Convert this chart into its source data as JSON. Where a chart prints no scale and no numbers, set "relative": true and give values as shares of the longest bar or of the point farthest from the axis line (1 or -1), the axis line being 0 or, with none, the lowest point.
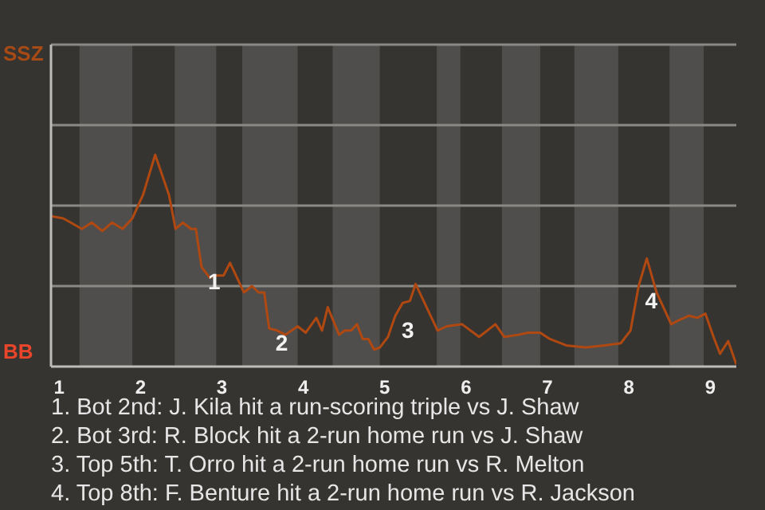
{
  "chart_data": {
    "type": "line",
    "relative": true,
    "x": [
      0.9,
      1.05,
      1.28,
      1.4,
      1.53,
      1.65,
      1.78,
      1.9,
      2.03,
      2.18,
      2.35,
      2.43,
      2.52,
      2.62,
      2.68,
      2.75,
      2.85,
      2.93,
      3.02,
      3.1,
      3.27,
      3.37,
      3.45,
      3.52,
      3.58,
      3.68,
      3.78,
      3.93,
      4.03,
      4.16,
      4.23,
      4.3,
      4.44,
      4.51,
      4.59,
      4.66,
      4.73,
      4.8,
      4.87,
      4.94,
      5.04,
      5.13,
      5.22,
      5.31,
      5.38,
      5.65,
      5.76,
      5.95,
      6.16,
      6.36,
      6.47,
      6.64,
      6.76,
      6.91,
      7.03,
      7.23,
      7.47,
      7.7,
      7.9,
      8.02,
      8.12,
      8.22,
      8.34,
      8.52,
      8.62,
      8.74,
      8.84,
      8.94,
      9.04,
      9.12,
      9.22,
      9.32
    ],
    "series": [
      {
        "color": "#b04812",
        "values": [
          0.71,
          0.7,
          0.65,
          0.68,
          0.64,
          0.68,
          0.65,
          0.7,
          0.81,
          1,
          0.81,
          0.65,
          0.68,
          0.65,
          0.65,
          0.47,
          0.42,
          0.43,
          0.43,
          0.49,
          0.35,
          0.38,
          0.35,
          0.35,
          0.18,
          0.17,
          0.15,
          0.19,
          0.16,
          0.23,
          0.17,
          0.28,
          0.15,
          0.17,
          0.17,
          0.2,
          0.13,
          0.13,
          0.08,
          0.09,
          0.14,
          0.24,
          0.3,
          0.31,
          0.39,
          0.17,
          0.19,
          0.2,
          0.14,
          0.2,
          0.14,
          0.15,
          0.16,
          0.16,
          0.13,
          0.1,
          0.09,
          0.1,
          0.11,
          0.17,
          0.38,
          0.51,
          0.35,
          0.2,
          0.22,
          0.24,
          0.23,
          0.25,
          0.14,
          0.06,
          0.12,
          0.01
        ]
      }
    ],
    "xlim": [
      0.9,
      9.32
    ],
    "xticks": [
      1,
      2,
      3,
      4,
      5,
      6,
      7,
      8,
      9
    ],
    "marker": "none",
    "ref_lines": [
      {
        "axis": "y",
        "value": 1.52,
        "label": "SSZ",
        "color": "#8a8986"
      },
      {
        "axis": "y",
        "value": 1.14,
        "color": "#8a8986"
      },
      {
        "axis": "y",
        "value": 0.76,
        "color": "#8a8986"
      },
      {
        "axis": "y",
        "value": 0.38,
        "color": "#8a8986"
      }
    ],
    "bands": [
      {
        "axis": "x",
        "from": 1.25,
        "to": 1.9,
        "color": "#4f4e4c"
      },
      {
        "axis": "x",
        "from": 2.42,
        "to": 2.93,
        "color": "#4f4e4c"
      },
      {
        "axis": "x",
        "from": 3.25,
        "to": 3.93,
        "color": "#4f4e4c"
      },
      {
        "axis": "x",
        "from": 4.36,
        "to": 4.94,
        "color": "#4f4e4c"
      },
      {
        "axis": "x",
        "from": 5.64,
        "to": 5.93,
        "color": "#4f4e4c"
      },
      {
        "axis": "x",
        "from": 6.44,
        "to": 6.91,
        "color": "#4f4e4c"
      },
      {
        "axis": "x",
        "from": 7.33,
        "to": 7.87,
        "color": "#4f4e4c"
      },
      {
        "axis": "x",
        "from": 8.5,
        "to": 8.92,
        "color": "#4f4e4c"
      }
    ],
    "annotations": [
      {
        "text": "1",
        "x": 2.75,
        "y": 0.47
      },
      {
        "text": "2",
        "x": 3.58,
        "y": 0.18
      },
      {
        "text": "3",
        "x": 5.13,
        "y": 0.24
      },
      {
        "text": "4",
        "x": 8.12,
        "y": 0.38
      },
      "BB",
      "1. Bot 2nd: J. Kila hit a run-scoring triple vs J. Shaw",
      "2. Bot 3rd: R. Block hit a 2-run home run vs J. Shaw",
      "3. Top 5th: T. Orro hit a 2-run home run vs R. Melton",
      "4. Top 8th: F. Benture hit a 2-run home run vs R. Jackson"
    ]
  }
}
